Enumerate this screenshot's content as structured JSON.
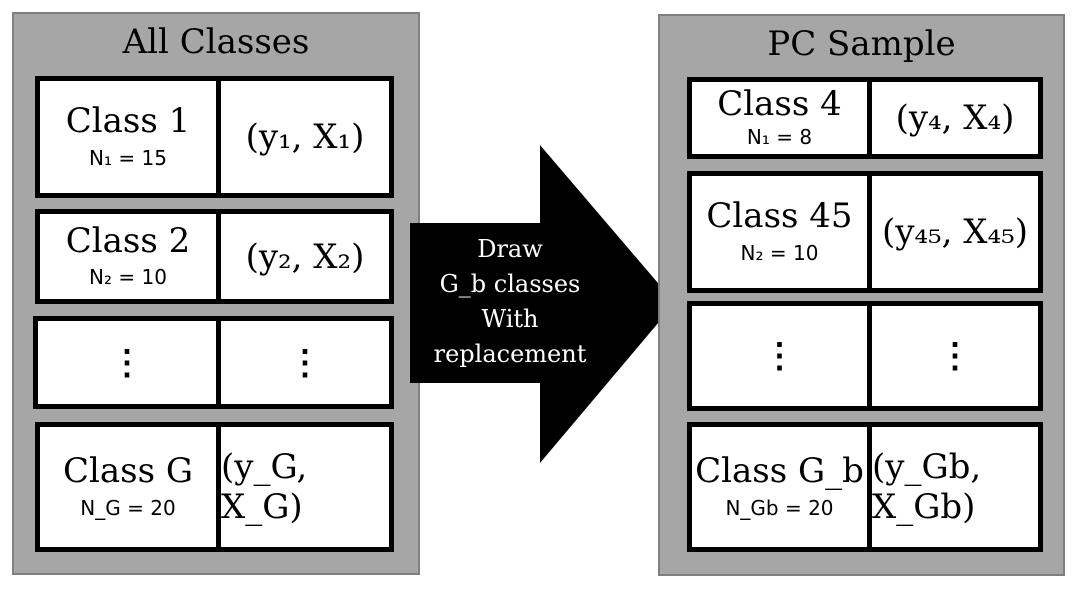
{
  "left_panel": {
    "title": "All Classes",
    "rows": [
      {
        "name": "Class 1",
        "size": "N₁ = 15",
        "pair": "(y₁, X₁)"
      },
      {
        "name": "Class 2",
        "size": "N₂ = 10",
        "pair": "(y₂, X₂)"
      },
      {
        "name": "⋮",
        "size": "",
        "pair": "⋮"
      },
      {
        "name": "Class G",
        "size": "N_G = 20",
        "pair": "(y_G, X_G)"
      }
    ]
  },
  "arrow": {
    "lines": [
      "Draw",
      "G_b classes",
      "With",
      "replacement"
    ]
  },
  "right_panel": {
    "title": "PC Sample",
    "rows": [
      {
        "name": "Class 4",
        "size": "N₁ = 8",
        "pair": "(y₄, X₄)"
      },
      {
        "name": "Class 45",
        "size": "N₂ = 10",
        "pair": "(y₄₅, X₄₅)"
      },
      {
        "name": "⋮",
        "size": "",
        "pair": "⋮"
      },
      {
        "name": "Class G_b",
        "size": "N_Gb = 20",
        "pair": "(y_Gb, X_Gb)"
      }
    ]
  }
}
